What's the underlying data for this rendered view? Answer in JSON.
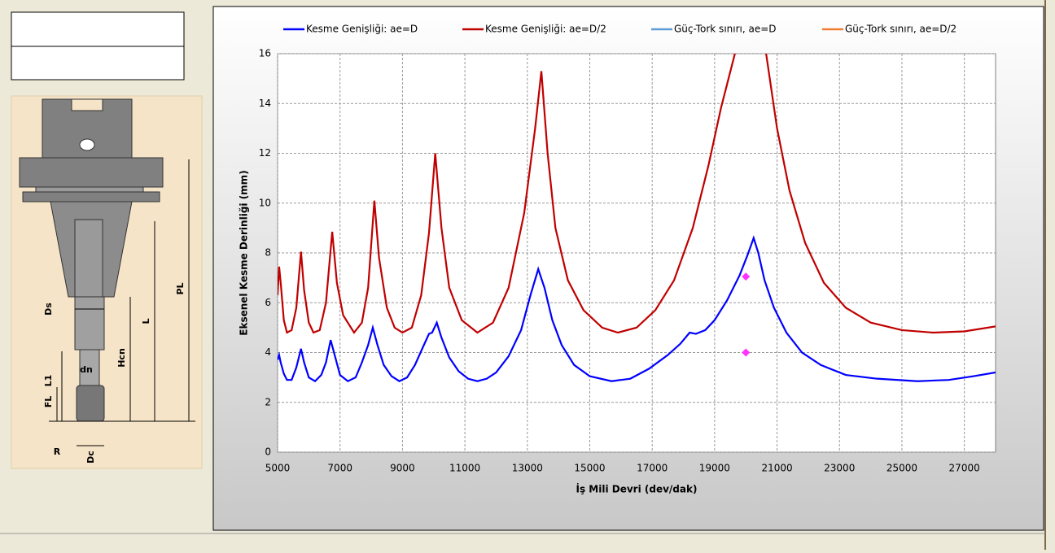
{
  "chart_data": {
    "type": "line",
    "xlabel": "İş Mili Devri (dev/dak)",
    "ylabel": "Eksenel Kesme Derinliği (mm)",
    "xlim": [
      5000,
      28000
    ],
    "xticks": [
      5000,
      7000,
      9000,
      11000,
      13000,
      15000,
      17000,
      19000,
      21000,
      23000,
      25000,
      27000
    ],
    "ylim": [
      0,
      16
    ],
    "yticks": [
      0,
      2,
      4,
      6,
      8,
      10,
      12,
      14,
      16
    ],
    "grid": true,
    "legend": "top",
    "series": [
      {
        "name": "Kesme Genişliği: ae=D",
        "color": "#0000ff",
        "x": [
          5000,
          5050,
          5100,
          5200,
          5300,
          5450,
          5600,
          5750,
          5850,
          6000,
          6200,
          6400,
          6550,
          6700,
          6850,
          7000,
          7250,
          7500,
          7700,
          7900,
          8050,
          8200,
          8400,
          8650,
          8900,
          9150,
          9400,
          9650,
          9850,
          9950,
          10100,
          10250,
          10500,
          10800,
          11100,
          11400,
          11700,
          12000,
          12400,
          12800,
          13100,
          13350,
          13550,
          13800,
          14100,
          14500,
          15000,
          15700,
          16300,
          16900,
          17500,
          17900,
          18200,
          18400,
          18700,
          19000,
          19400,
          19800,
          20050,
          20250,
          20400,
          20600,
          20900,
          21300,
          21800,
          22400,
          23200,
          24200,
          25500,
          26500,
          27300,
          28000
        ],
        "values": [
          3.7,
          3.9,
          3.6,
          3.15,
          2.9,
          2.9,
          3.4,
          4.15,
          3.6,
          3.0,
          2.85,
          3.1,
          3.6,
          4.5,
          3.8,
          3.1,
          2.85,
          3.0,
          3.6,
          4.3,
          5.0,
          4.3,
          3.5,
          3.05,
          2.85,
          3.0,
          3.5,
          4.2,
          4.75,
          4.8,
          5.2,
          4.6,
          3.8,
          3.25,
          2.95,
          2.85,
          2.95,
          3.2,
          3.85,
          4.9,
          6.3,
          7.35,
          6.6,
          5.3,
          4.3,
          3.5,
          3.05,
          2.85,
          2.95,
          3.35,
          3.9,
          4.35,
          4.8,
          4.75,
          4.9,
          5.3,
          6.1,
          7.1,
          7.9,
          8.6,
          8.0,
          6.9,
          5.8,
          4.8,
          4.0,
          3.5,
          3.1,
          2.95,
          2.85,
          2.9,
          3.05,
          3.2
        ]
      },
      {
        "name": "Kesme Genişliği: ae=D/2",
        "color": "#c00000",
        "x": [
          5000,
          5050,
          5100,
          5200,
          5300,
          5450,
          5600,
          5750,
          5850,
          6000,
          6150,
          6350,
          6550,
          6750,
          6900,
          7100,
          7450,
          7700,
          7900,
          8100,
          8250,
          8500,
          8750,
          9000,
          9300,
          9600,
          9850,
          10050,
          10250,
          10500,
          10900,
          11400,
          11900,
          12400,
          12900,
          13250,
          13450,
          13650,
          13900,
          14300,
          14800,
          15400,
          15900,
          16500,
          17100,
          17700,
          18300,
          18800,
          19200,
          19650,
          20200,
          20650,
          21000,
          21400,
          21900,
          22500,
          23200,
          24000,
          25000,
          26000,
          27000,
          28000
        ],
        "values": [
          6.3,
          7.45,
          6.8,
          5.3,
          4.8,
          4.9,
          5.8,
          8.05,
          6.5,
          5.2,
          4.8,
          4.9,
          6.0,
          8.85,
          6.8,
          5.5,
          4.8,
          5.2,
          6.6,
          10.1,
          7.8,
          5.8,
          5.0,
          4.8,
          5.0,
          6.3,
          8.8,
          12.0,
          9.0,
          6.6,
          5.3,
          4.8,
          5.2,
          6.6,
          9.6,
          13.0,
          15.3,
          12.0,
          9.0,
          6.9,
          5.7,
          5.0,
          4.8,
          5.0,
          5.7,
          6.9,
          9.0,
          11.5,
          13.8,
          16,
          null,
          16,
          13.0,
          10.5,
          8.4,
          6.8,
          5.8,
          5.2,
          4.9,
          4.8,
          4.85,
          5.05
        ]
      },
      {
        "name": "Güç-Tork sınırı, ae=D",
        "color": "#5b9bd5",
        "x": [],
        "values": []
      },
      {
        "name": "Güç-Tork sınırı, ae=D/2",
        "color": "#ed7d31",
        "x": [],
        "values": []
      }
    ],
    "markers": {
      "color": "#ff33ff",
      "x": [
        20000,
        20000
      ],
      "values": [
        7.05,
        4.0
      ]
    }
  },
  "tool_diagram": {
    "labels": [
      "PL",
      "L",
      "Ds",
      "Hcn",
      "dn",
      "L1",
      "FL",
      "R",
      "Dc"
    ]
  }
}
